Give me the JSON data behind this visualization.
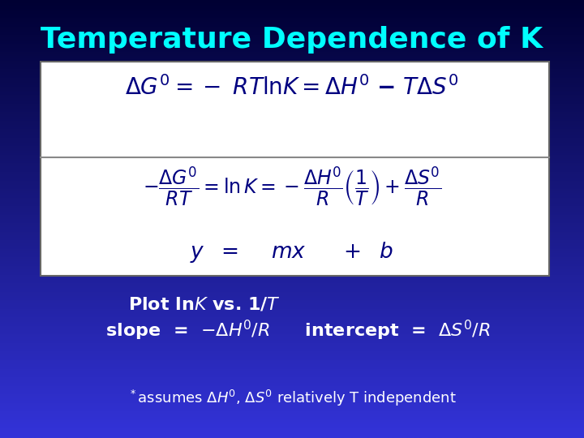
{
  "title": "Temperature Dependence of K",
  "title_color": "#00FFFF",
  "title_fontsize": 26,
  "bg_top_color": "#000033",
  "bg_bottom_color": "#3333CC",
  "box_bg": "#FFFFFF",
  "box_text_color": "#000080",
  "below_text_color": "#FFFFFF",
  "eq1": "$\\Delta G^0 = - RT\\ln K = \\Delta H^0 - T\\Delta S^0$",
  "eq2_line1": "$-\\dfrac{\\Delta G^0}{RT} = \\ln K = -\\dfrac{\\Delta H^0}{R}\\left(\\dfrac{1}{T}\\right)+\\dfrac{\\Delta S^0}{R}$",
  "eq2_line2": "$y \\quad = \\quad mx \\qquad + \\; b$",
  "plot_line1": "Plot ln$K$ vs. 1/$T$",
  "plot_line2": "  slope  =  $-\\Delta H^0/R$ $\\quad$ intercept  =  $\\Delta S^0/R$",
  "footnote": "$*$assumes $\\Delta H^0$, $\\Delta S^0$ relatively T independent"
}
